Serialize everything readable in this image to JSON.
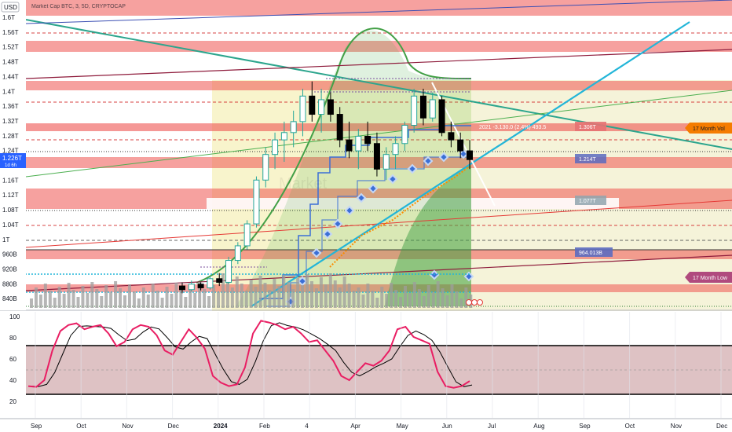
{
  "header": {
    "currency": "USD",
    "symbol_line": "Market Cap BTC, 3, 5D, CRYPTOCAP"
  },
  "price_axis": {
    "labels": [
      "1.6T",
      "1.56T",
      "1.52T",
      "1.48T",
      "1.44T",
      "1.4T",
      "1.36T",
      "1.32T",
      "1.28T",
      "1.24T",
      "1.2T",
      "1.16T",
      "1.12T",
      "1.08T",
      "1.04T",
      "1T",
      "960B",
      "920B",
      "880B",
      "840B"
    ],
    "current_price": "1.226T",
    "current_price_sub": "1d 6h"
  },
  "stoch_axis": {
    "labels": [
      "100",
      "80",
      "60",
      "40",
      "20"
    ]
  },
  "time_axis": {
    "labels": [
      "Sep",
      "Oct",
      "Nov",
      "Dec",
      "2024",
      "Feb",
      "4",
      "Apr",
      "May",
      "Jun",
      "Jul",
      "Aug",
      "Sep",
      "Oct",
      "Nov",
      "Dec"
    ]
  },
  "price_tags": {
    "t1": "1.306T",
    "t2": "1.214T",
    "t3": "1.077T",
    "t4": "964.013B"
  },
  "annotations": {
    "vol_high": "17 Month Vol",
    "vol_low": "17 Month Low",
    "fib_text": "2021 -3.130.0 (2.4%) 493.5"
  },
  "colors": {
    "red_zone": "#ef5350",
    "yellow_zone": "#f5f0b8",
    "green_area": "#4caf50",
    "teal_line": "#2ca58d",
    "cyan_line": "#22b5d8",
    "blue_line": "#3b6fd6",
    "stoch_k": "#e91e63",
    "orange_tag": "#f57c00",
    "purple_tag": "#b04a7e"
  },
  "chart_data": {
    "type": "candlestick",
    "title": "Market Cap BTC, 3, 5D, CRYPTOCAP",
    "ylabel": "USD",
    "ylim": [
      820000000000,
      1620000000000
    ],
    "ohlc": [
      [
        880,
        890,
        860,
        870
      ],
      [
        870,
        895,
        865,
        885
      ],
      [
        885,
        890,
        868,
        875
      ],
      [
        875,
        905,
        870,
        900
      ],
      [
        900,
        915,
        880,
        890
      ],
      [
        890,
        960,
        885,
        950
      ],
      [
        950,
        1000,
        940,
        990
      ],
      [
        990,
        1060,
        980,
        1050
      ],
      [
        1050,
        1180,
        1040,
        1170
      ],
      [
        1170,
        1260,
        1150,
        1240
      ],
      [
        1240,
        1300,
        1200,
        1280
      ],
      [
        1280,
        1330,
        1220,
        1300
      ],
      [
        1300,
        1360,
        1260,
        1330
      ],
      [
        1330,
        1420,
        1290,
        1400
      ],
      [
        1400,
        1440,
        1330,
        1350
      ],
      [
        1350,
        1420,
        1300,
        1390
      ],
      [
        1390,
        1410,
        1330,
        1350
      ],
      [
        1350,
        1370,
        1260,
        1280
      ],
      [
        1280,
        1330,
        1230,
        1250
      ],
      [
        1250,
        1310,
        1200,
        1290
      ],
      [
        1290,
        1330,
        1250,
        1270
      ],
      [
        1270,
        1300,
        1180,
        1200
      ],
      [
        1200,
        1260,
        1170,
        1240
      ],
      [
        1240,
        1290,
        1200,
        1270
      ],
      [
        1270,
        1330,
        1250,
        1320
      ],
      [
        1320,
        1420,
        1300,
        1400
      ],
      [
        1400,
        1420,
        1320,
        1340
      ],
      [
        1340,
        1410,
        1330,
        1390
      ],
      [
        1390,
        1400,
        1290,
        1300
      ],
      [
        1300,
        1330,
        1260,
        1280
      ],
      [
        1280,
        1300,
        1230,
        1250
      ],
      [
        1250,
        1280,
        1200,
        1226
      ]
    ],
    "stoch_k": [
      18,
      17,
      25,
      60,
      83,
      90,
      92,
      85,
      88,
      90,
      80,
      65,
      70,
      85,
      90,
      88,
      78,
      60,
      55,
      70,
      85,
      75,
      62,
      30,
      22,
      18,
      20,
      40,
      80,
      95,
      93,
      90,
      85,
      88,
      80,
      70,
      72,
      60,
      48,
      30,
      25,
      35,
      45,
      42,
      48,
      60,
      85,
      88,
      76,
      72,
      68,
      35,
      18,
      16,
      18,
      24
    ],
    "stoch_lines": [
      80,
      20
    ]
  }
}
